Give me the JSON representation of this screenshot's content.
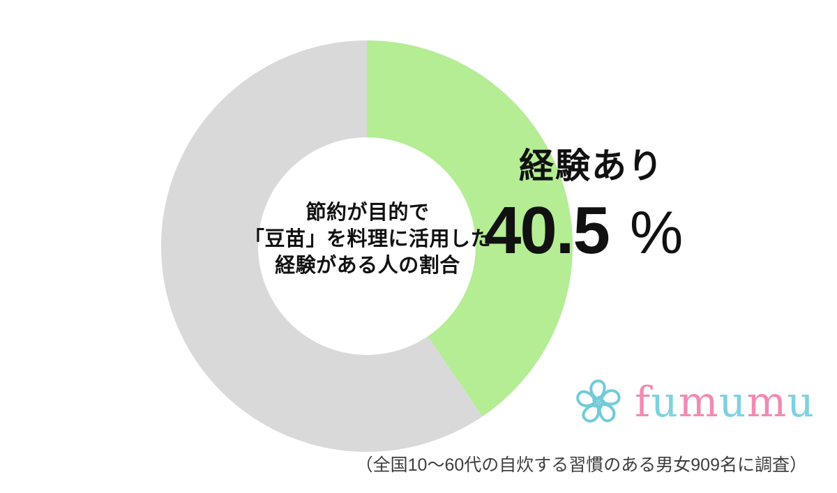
{
  "chart_data": {
    "type": "pie",
    "subtype": "donut",
    "title": "節約が目的で「豆苗」を料理に活用した経験がある人の割合",
    "center_label_lines": [
      "節約が目的で",
      "「豆苗」を料理に活用した",
      "経験がある人の割合"
    ],
    "slices": [
      {
        "label": "経験あり",
        "value": 40.5,
        "color": "#b4ed93"
      },
      {
        "label": "",
        "value": 59.5,
        "color": "#d9d9d9"
      }
    ],
    "unit": "%",
    "start_angle_deg": 0,
    "direction": "clockwise",
    "legend": "none",
    "hole_color": "#ffffff"
  },
  "callout": {
    "label": "経験あり",
    "value": "40.5",
    "unit": "%"
  },
  "footnote": "（全国10〜60代の自炊する習慣のある男女909名に調査）",
  "logo": {
    "name": "fumumu",
    "flower_color": "#72cbd9",
    "letters": [
      {
        "ch": "f",
        "color": "#f08bb2"
      },
      {
        "ch": "u",
        "color": "#7dd2e0"
      },
      {
        "ch": "m",
        "color": "#f08bb2"
      },
      {
        "ch": "u",
        "color": "#7dd2e0"
      },
      {
        "ch": "m",
        "color": "#f08bb2"
      },
      {
        "ch": "u",
        "color": "#7dd2e0"
      }
    ]
  },
  "colors": {
    "text": "#111111",
    "footnote": "#3d3d3d"
  }
}
